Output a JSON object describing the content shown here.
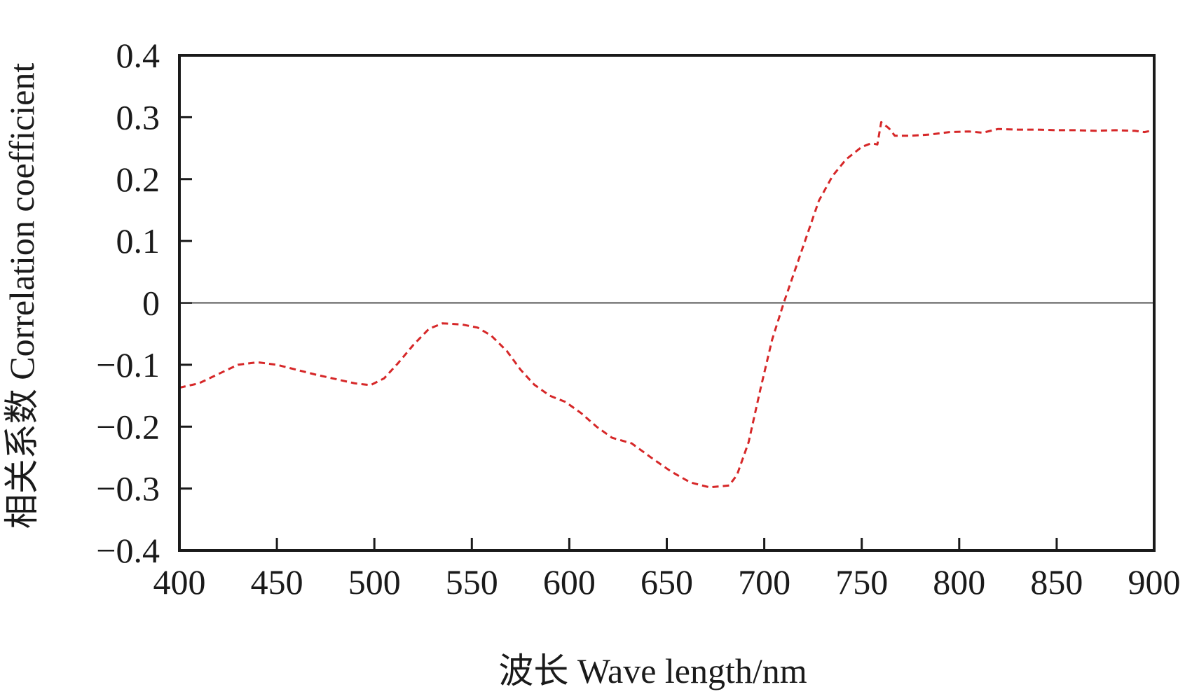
{
  "chart_data": {
    "type": "line",
    "xlabel": "波长 Wave length/nm",
    "ylabel": "相关系数 Correlation coefficient",
    "xlim": [
      400,
      900
    ],
    "ylim": [
      -0.4,
      0.4
    ],
    "x_ticks": [
      400,
      450,
      500,
      550,
      600,
      650,
      700,
      750,
      800,
      850,
      900
    ],
    "y_ticks": [
      0.4,
      0.3,
      0.2,
      0.1,
      0,
      -0.1,
      -0.2,
      -0.3,
      -0.4
    ],
    "x_tick_labels": [
      "400",
      "450",
      "500",
      "550",
      "600",
      "650",
      "700",
      "750",
      "800",
      "850",
      "900"
    ],
    "y_tick_labels": [
      "0.4",
      "0.3",
      "0.2",
      "0.1",
      "0",
      "−0.1",
      "−0.2",
      "−0.3",
      "−0.4"
    ],
    "reference_line_y": 0,
    "grid": false,
    "series": [
      {
        "color": "#d62728",
        "line_style": "dashed",
        "points": [
          [
            400,
            -0.137
          ],
          [
            410,
            -0.13
          ],
          [
            420,
            -0.115
          ],
          [
            430,
            -0.1
          ],
          [
            440,
            -0.096
          ],
          [
            450,
            -0.1
          ],
          [
            460,
            -0.108
          ],
          [
            470,
            -0.116
          ],
          [
            480,
            -0.123
          ],
          [
            490,
            -0.13
          ],
          [
            498,
            -0.133
          ],
          [
            505,
            -0.122
          ],
          [
            512,
            -0.098
          ],
          [
            520,
            -0.068
          ],
          [
            528,
            -0.042
          ],
          [
            535,
            -0.033
          ],
          [
            545,
            -0.035
          ],
          [
            553,
            -0.04
          ],
          [
            560,
            -0.053
          ],
          [
            568,
            -0.078
          ],
          [
            575,
            -0.108
          ],
          [
            582,
            -0.132
          ],
          [
            590,
            -0.15
          ],
          [
            598,
            -0.16
          ],
          [
            606,
            -0.178
          ],
          [
            614,
            -0.2
          ],
          [
            622,
            -0.218
          ],
          [
            632,
            -0.227
          ],
          [
            642,
            -0.25
          ],
          [
            652,
            -0.272
          ],
          [
            662,
            -0.29
          ],
          [
            672,
            -0.298
          ],
          [
            682,
            -0.295
          ],
          [
            686,
            -0.278
          ],
          [
            692,
            -0.225
          ],
          [
            698,
            -0.14
          ],
          [
            704,
            -0.06
          ],
          [
            710,
            0.0
          ],
          [
            716,
            0.055
          ],
          [
            722,
            0.11
          ],
          [
            728,
            0.165
          ],
          [
            735,
            0.205
          ],
          [
            742,
            0.232
          ],
          [
            750,
            0.252
          ],
          [
            755,
            0.258
          ],
          [
            758,
            0.256
          ],
          [
            760,
            0.292
          ],
          [
            764,
            0.282
          ],
          [
            767,
            0.27
          ],
          [
            775,
            0.27
          ],
          [
            785,
            0.272
          ],
          [
            795,
            0.276
          ],
          [
            805,
            0.277
          ],
          [
            812,
            0.275
          ],
          [
            820,
            0.281
          ],
          [
            830,
            0.28
          ],
          [
            840,
            0.28
          ],
          [
            850,
            0.279
          ],
          [
            860,
            0.279
          ],
          [
            870,
            0.278
          ],
          [
            880,
            0.279
          ],
          [
            890,
            0.278
          ],
          [
            895,
            0.276
          ],
          [
            900,
            0.279
          ]
        ]
      }
    ]
  }
}
